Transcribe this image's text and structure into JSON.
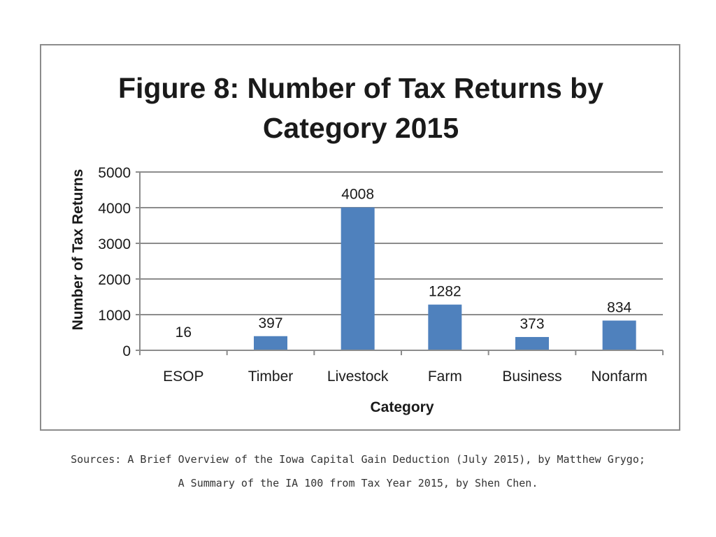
{
  "chart_data": {
    "type": "bar",
    "title_lines": [
      "Figure 8: Number of Tax Returns by",
      "Category 2015"
    ],
    "xlabel": "Category",
    "ylabel": "Number of Tax Returns",
    "categories": [
      "ESOP",
      "Timber",
      "Livestock",
      "Farm",
      "Business",
      "Nonfarm"
    ],
    "values": [
      16,
      397,
      4008,
      1282,
      373,
      834
    ],
    "data_labels": [
      "16",
      "397",
      "4008",
      "1282",
      "373",
      "834"
    ],
    "ylim": [
      0,
      5000
    ],
    "yticks": [
      0,
      1000,
      2000,
      3000,
      4000,
      5000
    ],
    "grid": true,
    "bar_color": "#4f81bd"
  },
  "sources": {
    "line1": "Sources: A Brief Overview of the Iowa Capital Gain Deduction (July 2015), by Matthew Grygo;",
    "line2": "A Summary of the IA 100 from Tax Year 2015, by Shen Chen."
  }
}
